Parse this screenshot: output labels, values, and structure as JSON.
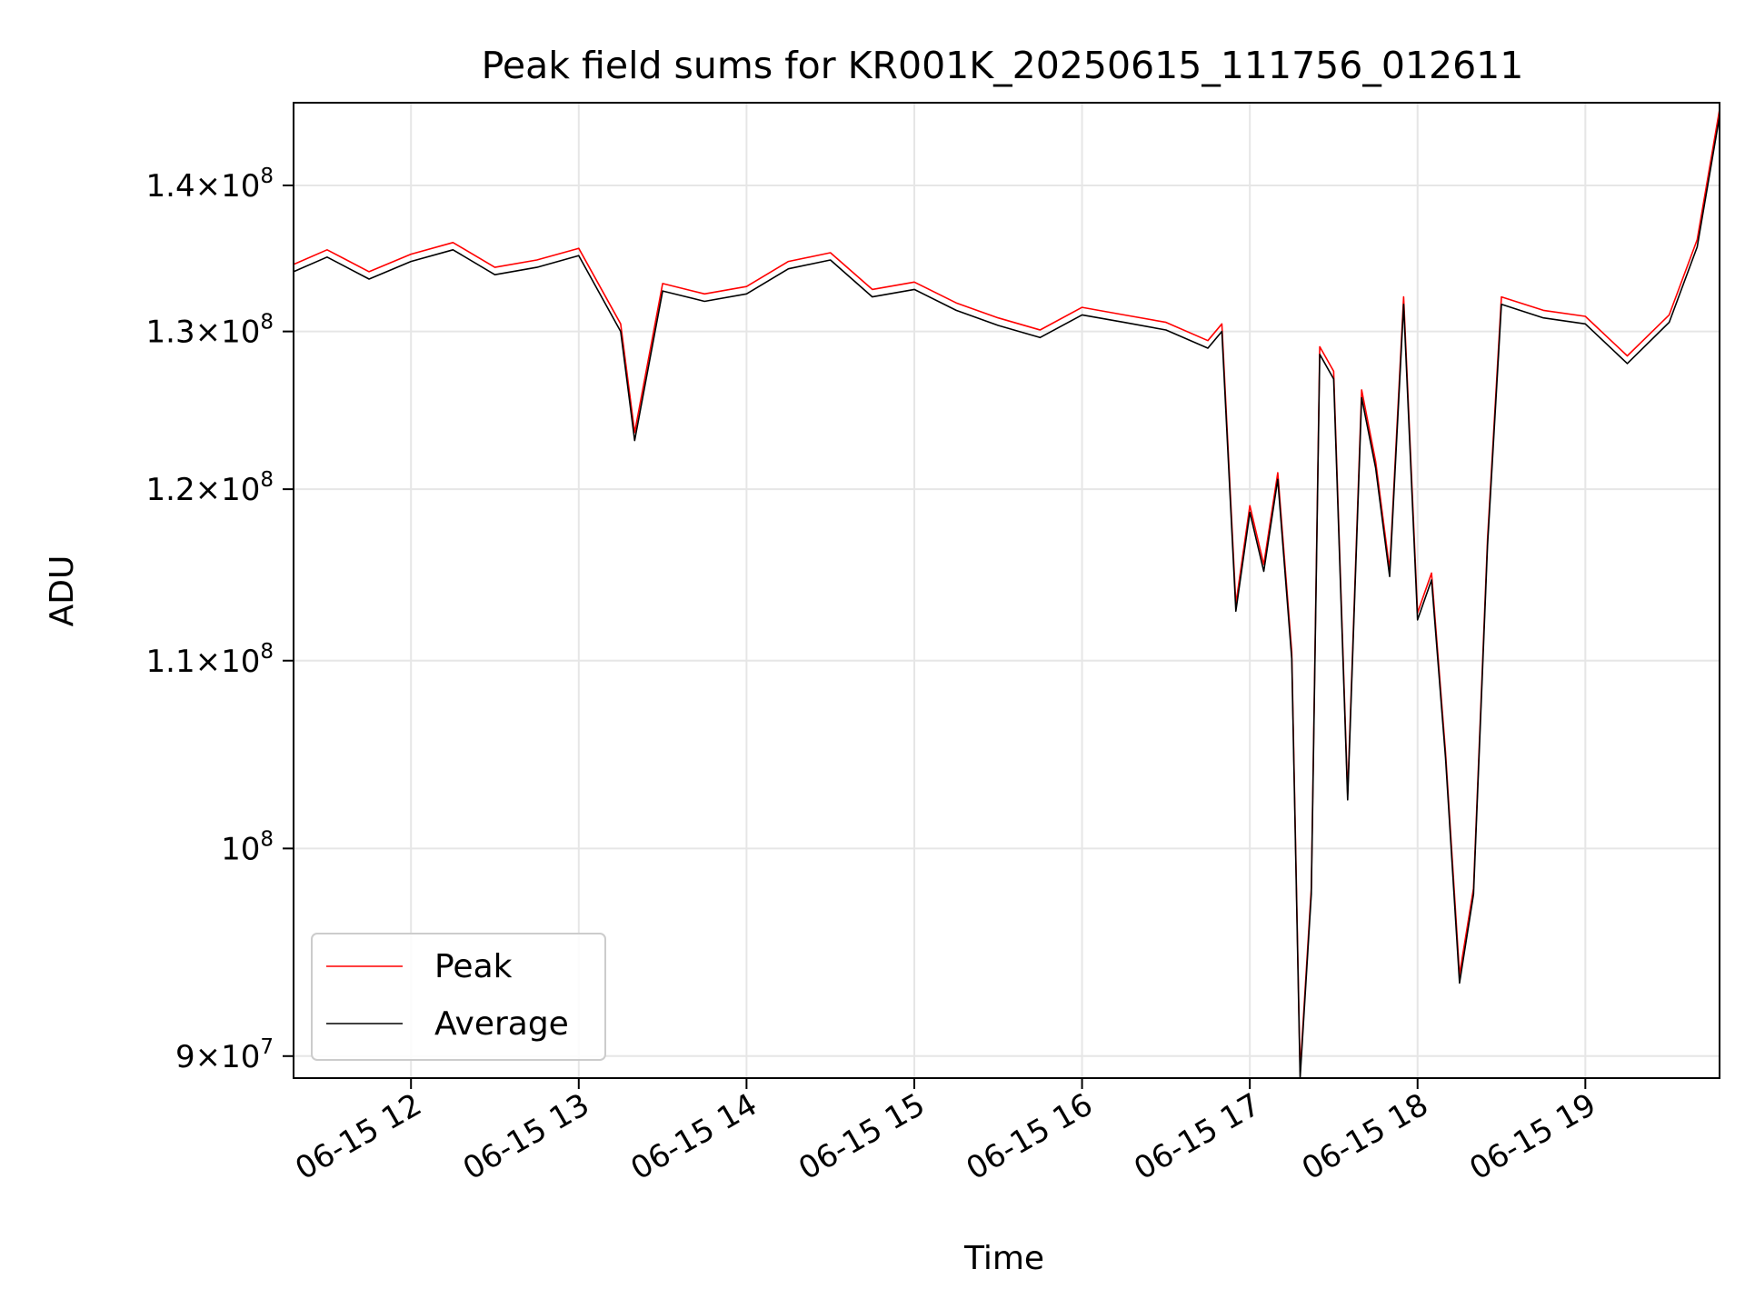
{
  "chart_data": {
    "type": "line",
    "title": "Peak field sums for KR001K_20250615_111756_012611",
    "xlabel": "Time",
    "ylabel": "ADU",
    "y_scale": "log",
    "xlim": [
      "06-15 11:18",
      "06-15 19:48"
    ],
    "ylim": [
      89000000,
      146000000
    ],
    "grid": true,
    "legend_position": "lower-left",
    "x_ticks": [
      {
        "label": "06-15 12",
        "hour": 12
      },
      {
        "label": "06-15 13",
        "hour": 13
      },
      {
        "label": "06-15 14",
        "hour": 14
      },
      {
        "label": "06-15 15",
        "hour": 15
      },
      {
        "label": "06-15 16",
        "hour": 16
      },
      {
        "label": "06-15 17",
        "hour": 17
      },
      {
        "label": "06-15 18",
        "hour": 18
      },
      {
        "label": "06-15 19",
        "hour": 19
      }
    ],
    "y_ticks": [
      {
        "mant": "9",
        "exp": "7",
        "value": 90000000
      },
      {
        "mant": "",
        "exp": "8",
        "value": 100000000
      },
      {
        "mant": "1.1",
        "exp": "8",
        "value": 110000000
      },
      {
        "mant": "1.2",
        "exp": "8",
        "value": 120000000
      },
      {
        "mant": "1.3",
        "exp": "8",
        "value": 130000000
      },
      {
        "mant": "1.4",
        "exp": "8",
        "value": 140000000
      }
    ],
    "series": [
      {
        "name": "Peak",
        "color": "#ff0000",
        "time": [
          "06-15 11:18",
          "06-15 11:30",
          "06-15 11:45",
          "06-15 12:00",
          "06-15 12:15",
          "06-15 12:30",
          "06-15 12:45",
          "06-15 13:00",
          "06-15 13:15",
          "06-15 13:20",
          "06-15 13:30",
          "06-15 13:45",
          "06-15 14:00",
          "06-15 14:15",
          "06-15 14:30",
          "06-15 14:45",
          "06-15 15:00",
          "06-15 15:15",
          "06-15 15:30",
          "06-15 15:45",
          "06-15 16:00",
          "06-15 16:15",
          "06-15 16:30",
          "06-15 16:45",
          "06-15 16:50",
          "06-15 16:55",
          "06-15 17:00",
          "06-15 17:05",
          "06-15 17:10",
          "06-15 17:15",
          "06-15 17:18",
          "06-15 17:22",
          "06-15 17:25",
          "06-15 17:30",
          "06-15 17:35",
          "06-15 17:40",
          "06-15 17:45",
          "06-15 17:50",
          "06-15 17:55",
          "06-15 18:00",
          "06-15 18:05",
          "06-15 18:10",
          "06-15 18:15",
          "06-15 18:20",
          "06-15 18:25",
          "06-15 18:30",
          "06-15 18:45",
          "06-15 19:00",
          "06-15 19:15",
          "06-15 19:30",
          "06-15 19:40",
          "06-15 19:48"
        ],
        "values": [
          134500000,
          135500000,
          134000000,
          135200000,
          136000000,
          134300000,
          134800000,
          135600000,
          130500000,
          123500000,
          133200000,
          132500000,
          133000000,
          134700000,
          135300000,
          132800000,
          133300000,
          131900000,
          130900000,
          130100000,
          131600000,
          131100000,
          130600000,
          129400000,
          130500000,
          113200000,
          119000000,
          115500000,
          121000000,
          110500000,
          89300000,
          98000000,
          129000000,
          127400000,
          102800000,
          126200000,
          121700000,
          115200000,
          132300000,
          112700000,
          115000000,
          105000000,
          93800000,
          98000000,
          117000000,
          132300000,
          131400000,
          131000000,
          128400000,
          131100000,
          136200000,
          145500000
        ]
      },
      {
        "name": "Average",
        "color": "#000000",
        "time": [
          "06-15 11:18",
          "06-15 11:30",
          "06-15 11:45",
          "06-15 12:00",
          "06-15 12:15",
          "06-15 12:30",
          "06-15 12:45",
          "06-15 13:00",
          "06-15 13:15",
          "06-15 13:20",
          "06-15 13:30",
          "06-15 13:45",
          "06-15 14:00",
          "06-15 14:15",
          "06-15 14:30",
          "06-15 14:45",
          "06-15 15:00",
          "06-15 15:15",
          "06-15 15:30",
          "06-15 15:45",
          "06-15 16:00",
          "06-15 16:15",
          "06-15 16:30",
          "06-15 16:45",
          "06-15 16:50",
          "06-15 16:55",
          "06-15 17:00",
          "06-15 17:05",
          "06-15 17:10",
          "06-15 17:15",
          "06-15 17:18",
          "06-15 17:22",
          "06-15 17:25",
          "06-15 17:30",
          "06-15 17:35",
          "06-15 17:40",
          "06-15 17:45",
          "06-15 17:50",
          "06-15 17:55",
          "06-15 18:00",
          "06-15 18:05",
          "06-15 18:10",
          "06-15 18:15",
          "06-15 18:20",
          "06-15 18:25",
          "06-15 18:30",
          "06-15 18:45",
          "06-15 19:00",
          "06-15 19:15",
          "06-15 19:30",
          "06-15 19:40",
          "06-15 19:48"
        ],
        "values": [
          134000000,
          135000000,
          133500000,
          134700000,
          135500000,
          133800000,
          134300000,
          135100000,
          130000000,
          123000000,
          132700000,
          132000000,
          132500000,
          134200000,
          134800000,
          132300000,
          132800000,
          131400000,
          130400000,
          129600000,
          131100000,
          130600000,
          130100000,
          128900000,
          130000000,
          112800000,
          118600000,
          115100000,
          120600000,
          110100000,
          89000000,
          97700000,
          128500000,
          126900000,
          102500000,
          125700000,
          121300000,
          114800000,
          131800000,
          112300000,
          114600000,
          104700000,
          93400000,
          97700000,
          116600000,
          131800000,
          130900000,
          130500000,
          127900000,
          130600000,
          135700000,
          145000000
        ]
      }
    ]
  }
}
